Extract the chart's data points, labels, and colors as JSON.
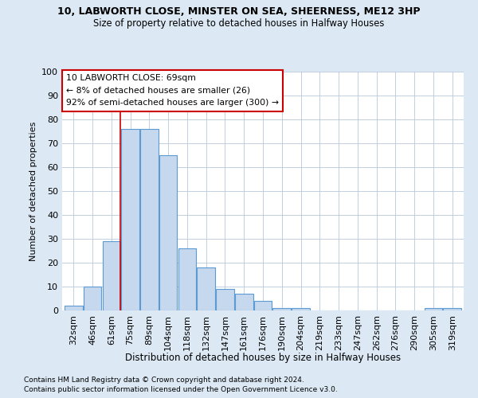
{
  "title_line1": "10, LABWORTH CLOSE, MINSTER ON SEA, SHEERNESS, ME12 3HP",
  "title_line2": "Size of property relative to detached houses in Halfway Houses",
  "xlabel": "Distribution of detached houses by size in Halfway Houses",
  "ylabel": "Number of detached properties",
  "bin_labels": [
    "32sqm",
    "46sqm",
    "61sqm",
    "75sqm",
    "89sqm",
    "104sqm",
    "118sqm",
    "132sqm",
    "147sqm",
    "161sqm",
    "176sqm",
    "190sqm",
    "204sqm",
    "219sqm",
    "233sqm",
    "247sqm",
    "262sqm",
    "276sqm",
    "290sqm",
    "305sqm",
    "319sqm"
  ],
  "bar_heights": [
    2,
    10,
    29,
    76,
    76,
    65,
    26,
    18,
    9,
    7,
    4,
    1,
    1,
    0,
    0,
    0,
    0,
    0,
    0,
    1,
    1
  ],
  "bar_color": "#c5d8ed",
  "bar_edge_color": "#5b9bd5",
  "annotation_line1": "10 LABWORTH CLOSE: 69sqm",
  "annotation_line2": "← 8% of detached houses are smaller (26)",
  "annotation_line3": "92% of semi-detached houses are larger (300) →",
  "vline_color": "#cc0000",
  "vline_position": 2.46,
  "ylim": [
    0,
    100
  ],
  "yticks": [
    0,
    10,
    20,
    30,
    40,
    50,
    60,
    70,
    80,
    90,
    100
  ],
  "footnote1": "Contains HM Land Registry data © Crown copyright and database right 2024.",
  "footnote2": "Contains public sector information licensed under the Open Government Licence v3.0.",
  "bg_color": "#dce9f5",
  "plot_bg_color": "#ffffff"
}
